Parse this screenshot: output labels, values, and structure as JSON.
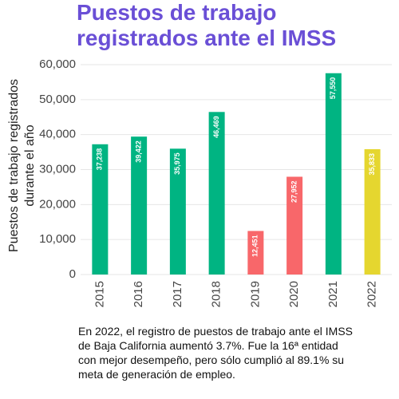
{
  "chart_data": {
    "type": "bar",
    "title": "Puestos de trabajo registrados ante el IMSS",
    "ylabel": [
      "Puestos de trabajo registrados",
      "durante el año"
    ],
    "categories": [
      "2015",
      "2016",
      "2017",
      "2018",
      "2019",
      "2020",
      "2021",
      "2022"
    ],
    "values": [
      37238,
      39422,
      35975,
      46469,
      12451,
      27952,
      57550,
      35833
    ],
    "value_labels": [
      "37,238",
      "39,422",
      "35,975",
      "46,469",
      "12,451",
      "27,952",
      "57,550",
      "35,833"
    ],
    "colors": [
      "#00b482",
      "#00b482",
      "#00b482",
      "#00b482",
      "#f8676a",
      "#f8676a",
      "#00b482",
      "#e5d62f"
    ],
    "ylim": [
      0,
      60000
    ],
    "yticks": [
      0,
      {
        "value": 10000,
        "label": "10,000"
      },
      {
        "value": 20000,
        "label": "20,000"
      },
      {
        "value": 30000,
        "label": "30,000"
      },
      {
        "value": 40000,
        "label": "40,000"
      },
      {
        "value": 50000,
        "label": "50,000"
      },
      {
        "value": 60000,
        "label": "60,000"
      }
    ],
    "grid": true,
    "caption": "En 2022, el registro de puestos de trabajo ante el IMSS de Baja California aumentó 3.7%. Fue la 16ª entidad con mejor desempeño, pero sólo cumplió al 89.1% su meta de generación de empleo."
  }
}
